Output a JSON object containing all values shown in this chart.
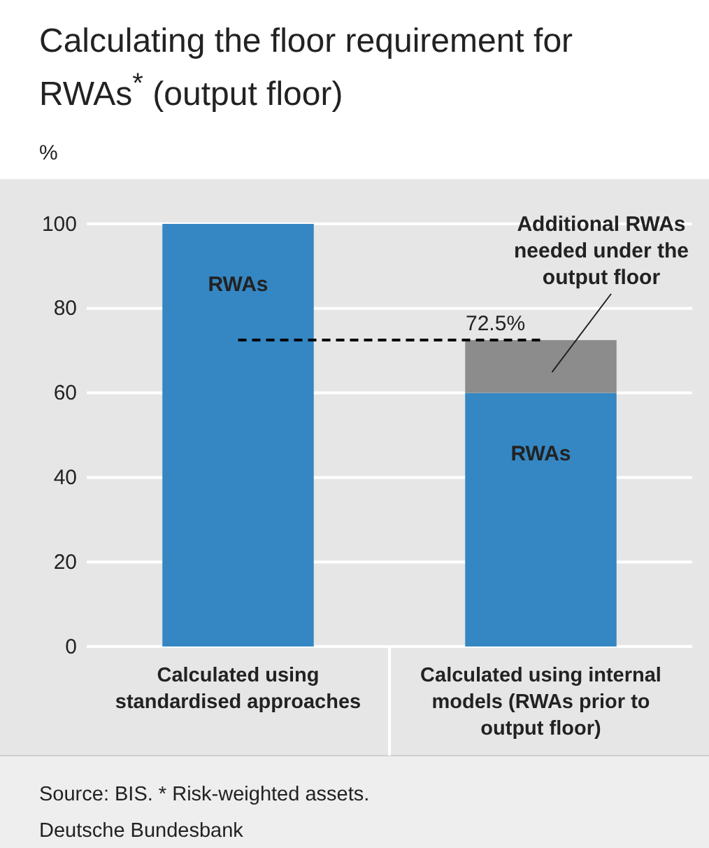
{
  "chart_data": {
    "type": "bar",
    "title": "Calculating the floor requirement for RWAs$^{*}$ (output floor)",
    "ylabel": "%",
    "categories": [
      "Calculated using standardised approaches",
      "Calculated using internal models (RWAs prior to output floor)"
    ],
    "stacked": true,
    "series": [
      {
        "name": "RWAs",
        "color": "#3587c3",
        "values": [
          100,
          60
        ]
      },
      {
        "name": "Additional RWAs needed under the output floor",
        "color": "#8c8c8c",
        "values": [
          null,
          12.5
        ]
      }
    ],
    "ylim": [
      0,
      100
    ],
    "yticks": [
      0,
      20,
      40,
      60,
      80,
      100
    ],
    "grid": "y",
    "ref_lines": [
      {
        "axis": "y",
        "value": 72.5,
        "label": "72.5%",
        "line_style": "dashed",
        "color": "#000000"
      }
    ],
    "annotations": [
      "Source: BIS. * Risk-weighted assets.",
      "Deutsche Bundesbank"
    ]
  }
}
